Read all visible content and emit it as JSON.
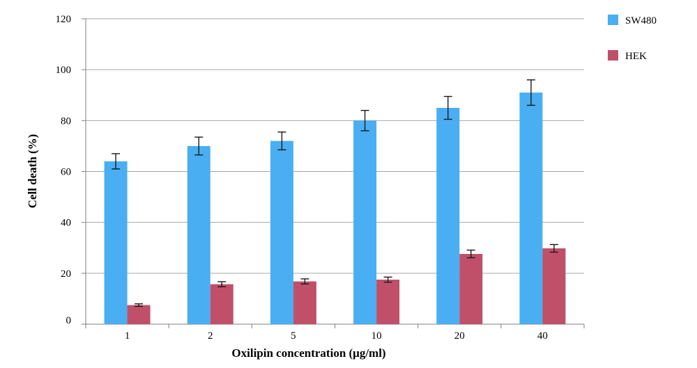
{
  "chart_data": {
    "type": "bar",
    "title": "",
    "xlabel": "Oxilipin concentration (μg/ml)",
    "ylabel": "Cell death (%)",
    "categories": [
      "1",
      "2",
      "5",
      "10",
      "20",
      "40"
    ],
    "ylim": [
      0,
      120
    ],
    "yticks": [
      0,
      20,
      40,
      60,
      80,
      100,
      120
    ],
    "grid": "horizontal",
    "legend": "right",
    "series": [
      {
        "name": "SW480",
        "color": "#4aaef2",
        "values": [
          64,
          70,
          72,
          80,
          85,
          91
        ],
        "errors": [
          3,
          3.5,
          3.5,
          4,
          4.5,
          5
        ]
      },
      {
        "name": "HEK",
        "color": "#c0506a",
        "values": [
          7.5,
          15.7,
          16.8,
          17.5,
          27.6,
          29.8
        ],
        "errors": [
          0.5,
          1,
          1,
          1,
          1.5,
          1.5
        ]
      }
    ]
  }
}
